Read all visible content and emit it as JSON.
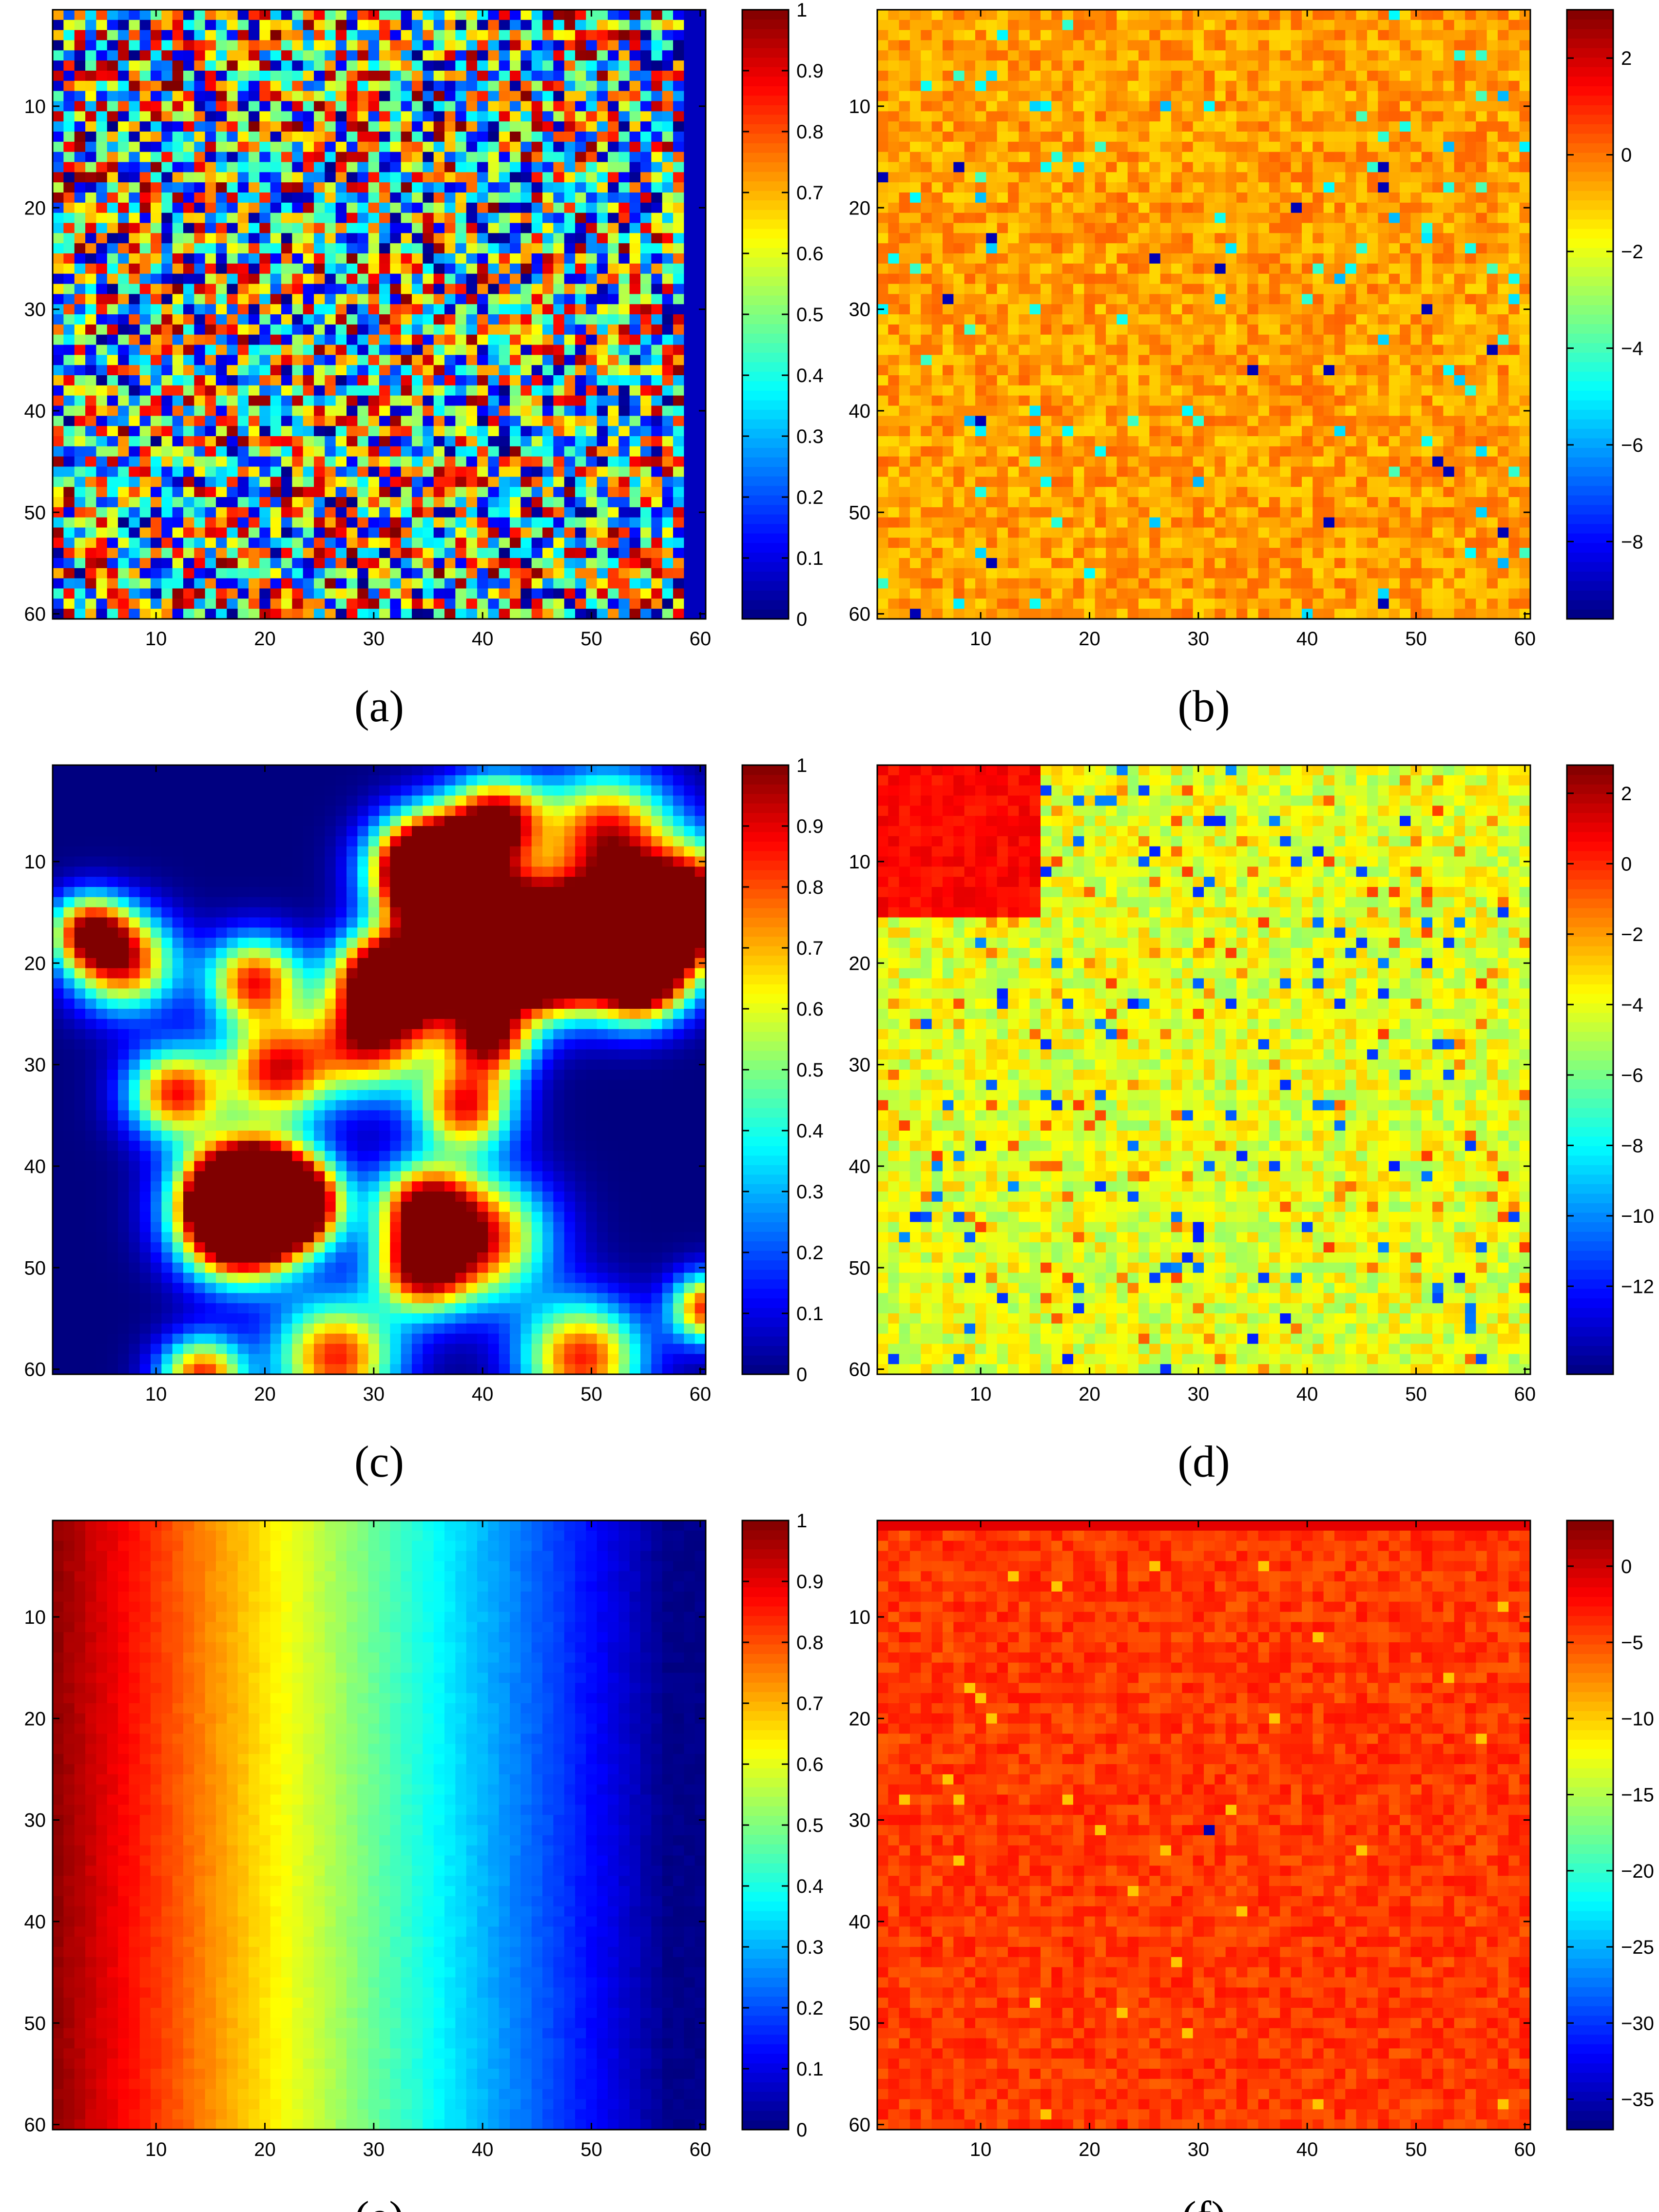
{
  "chart_data": [
    {
      "type": "heatmap",
      "panel": "a",
      "caption": "(a)",
      "pattern": "noise",
      "rows": 60,
      "cols": 60,
      "xlim": [
        1,
        60
      ],
      "ylim": [
        1,
        60
      ],
      "x_ticks": [
        10,
        20,
        30,
        40,
        50,
        60
      ],
      "y_ticks": [
        10,
        20,
        30,
        40,
        50,
        60
      ],
      "colorbar_range": [
        0,
        1
      ],
      "colorbar_ticks": [
        "0",
        "0.1",
        "0.2",
        "0.3",
        "0.4",
        "0.5",
        "0.6",
        "0.7",
        "0.8",
        "0.9",
        "1"
      ],
      "colormap": "jet"
    },
    {
      "type": "heatmap",
      "panel": "b",
      "caption": "(b)",
      "pattern": "noise-near-max",
      "rows": 60,
      "cols": 60,
      "xlim": [
        1,
        60
      ],
      "ylim": [
        1,
        60
      ],
      "x_ticks": [
        10,
        20,
        30,
        40,
        50,
        60
      ],
      "y_ticks": [
        10,
        20,
        30,
        40,
        50,
        60
      ],
      "colorbar_range": [
        -9.6,
        3
      ],
      "colorbar_ticks": [
        "2",
        "0",
        "−2",
        "−4",
        "−6",
        "−8"
      ],
      "colormap": "jet"
    },
    {
      "type": "heatmap",
      "panel": "c",
      "caption": "(c)",
      "pattern": "blobs",
      "rows": 60,
      "cols": 60,
      "xlim": [
        1,
        60
      ],
      "ylim": [
        1,
        60
      ],
      "x_ticks": [
        10,
        20,
        30,
        40,
        50,
        60
      ],
      "y_ticks": [
        10,
        20,
        30,
        40,
        50,
        60
      ],
      "colorbar_range": [
        0,
        1
      ],
      "colorbar_ticks": [
        "0",
        "0.1",
        "0.2",
        "0.3",
        "0.4",
        "0.5",
        "0.6",
        "0.7",
        "0.8",
        "0.9",
        "1"
      ],
      "colormap": "jet"
    },
    {
      "type": "heatmap",
      "panel": "d",
      "caption": "(d)",
      "pattern": "noise-with-block",
      "block_rows": [
        1,
        15
      ],
      "block_cols": [
        1,
        15
      ],
      "rows": 60,
      "cols": 60,
      "xlim": [
        1,
        60
      ],
      "ylim": [
        1,
        60
      ],
      "x_ticks": [
        10,
        20,
        30,
        40,
        50,
        60
      ],
      "y_ticks": [
        10,
        20,
        30,
        40,
        50,
        60
      ],
      "colorbar_range": [
        -14.5,
        2.8
      ],
      "colorbar_ticks": [
        "2",
        "0",
        "−2",
        "−4",
        "−6",
        "−8",
        "−10",
        "−12"
      ],
      "colormap": "jet"
    },
    {
      "type": "heatmap",
      "panel": "e",
      "caption": "(e)",
      "pattern": "horizontal-gradient",
      "rows": 60,
      "cols": 60,
      "xlim": [
        1,
        60
      ],
      "ylim": [
        1,
        60
      ],
      "x_ticks": [
        10,
        20,
        30,
        40,
        50,
        60
      ],
      "y_ticks": [
        10,
        20,
        30,
        40,
        50,
        60
      ],
      "colorbar_range": [
        0,
        1
      ],
      "colorbar_ticks": [
        "0",
        "0.1",
        "0.2",
        "0.3",
        "0.4",
        "0.5",
        "0.6",
        "0.7",
        "0.8",
        "0.9",
        "1"
      ],
      "colormap": "jet"
    },
    {
      "type": "heatmap",
      "panel": "f",
      "caption": "(f)",
      "pattern": "noise-near-max-dark-top",
      "rows": 60,
      "cols": 60,
      "xlim": [
        1,
        60
      ],
      "ylim": [
        1,
        60
      ],
      "x_ticks": [
        10,
        20,
        30,
        40,
        50,
        60
      ],
      "y_ticks": [
        10,
        20,
        30,
        40,
        50,
        60
      ],
      "colorbar_range": [
        -37,
        3
      ],
      "colorbar_ticks": [
        "0",
        "−5",
        "−10",
        "−15",
        "−20",
        "−25",
        "−30",
        "−35"
      ],
      "colormap": "jet"
    }
  ]
}
